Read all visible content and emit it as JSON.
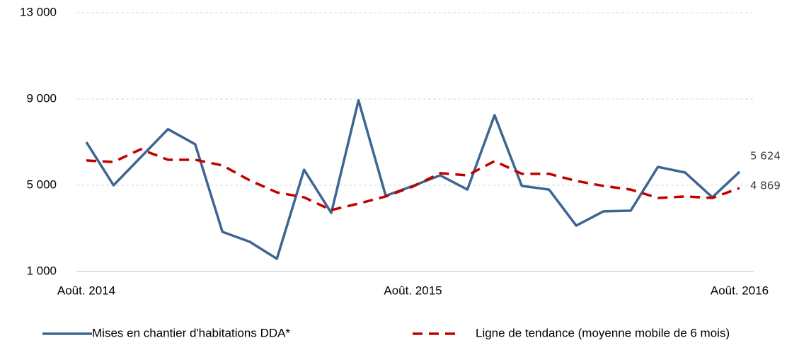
{
  "chart_data": {
    "type": "line",
    "categories": [
      "Août. 2014",
      null,
      null,
      null,
      null,
      null,
      null,
      null,
      null,
      null,
      null,
      null,
      "Août. 2015",
      null,
      null,
      null,
      null,
      null,
      null,
      null,
      null,
      null,
      null,
      null,
      "Août. 2016"
    ],
    "series": [
      {
        "name": "Mises en chantier d'habitations DDA*",
        "color": "#3e6592",
        "dash": false,
        "values": [
          7000,
          5000,
          6300,
          7600,
          6900,
          2840,
          2380,
          1590,
          5720,
          3720,
          8940,
          4510,
          4970,
          5460,
          4800,
          8250,
          4970,
          4800,
          3130,
          3790,
          3820,
          5850,
          5590,
          4440,
          5624
        ],
        "value_labels": [
          null,
          null,
          null,
          null,
          null,
          null,
          null,
          null,
          null,
          null,
          null,
          null,
          null,
          null,
          null,
          null,
          null,
          null,
          null,
          null,
          null,
          null,
          null,
          null,
          "5 624"
        ]
      },
      {
        "name": "Ligne de tendance (moyenne mobile de 6 mois)",
        "color": "#c00000",
        "dash": true,
        "values": [
          6150,
          6080,
          6670,
          6180,
          6180,
          5920,
          5230,
          4670,
          4440,
          3850,
          4150,
          4480,
          4940,
          5560,
          5460,
          6120,
          5530,
          5530,
          5200,
          4970,
          4800,
          4410,
          4480,
          4410,
          4869
        ],
        "value_labels": [
          null,
          null,
          null,
          null,
          null,
          null,
          null,
          null,
          null,
          null,
          null,
          null,
          null,
          null,
          null,
          null,
          null,
          null,
          null,
          null,
          null,
          null,
          null,
          null,
          "4 869"
        ]
      }
    ],
    "ylim": [
      1000,
      13000
    ],
    "yticks": [
      {
        "value": 1000,
        "label": "1 000"
      },
      {
        "value": 5000,
        "label": "5 000"
      },
      {
        "value": 9000,
        "label": "9 000"
      },
      {
        "value": 13000,
        "label": "13 000"
      }
    ],
    "grid": true,
    "legend": "bottom"
  }
}
